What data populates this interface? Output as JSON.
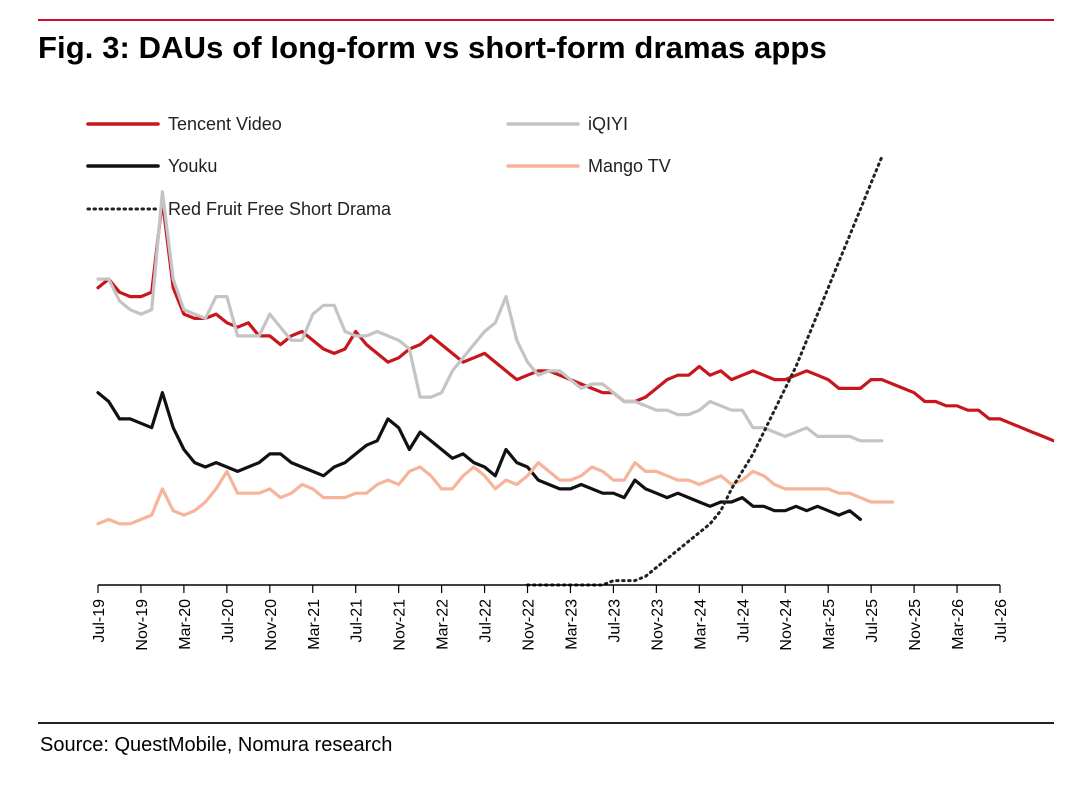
{
  "figure": {
    "title": "Fig. 3: DAUs of long-form vs short-form dramas apps",
    "source": "Source: QuestMobile, Nomura research"
  },
  "colors": {
    "tencent": "#c8161d",
    "iqiyi": "#c4c4c4",
    "youku": "#111111",
    "mango": "#f6b49a",
    "redfruit": "#222222",
    "accent_rule": "#c8102e"
  },
  "chart_data": {
    "type": "line",
    "title": "",
    "xlabel": "",
    "ylabel": "",
    "y_axis_shown": false,
    "x_ticks": [
      "Jul-19",
      "Nov-19",
      "Mar-20",
      "Jul-20",
      "Nov-20",
      "Mar-21",
      "Jul-21",
      "Nov-21",
      "Mar-22",
      "Jul-22",
      "Nov-22",
      "Mar-23",
      "Jul-23",
      "Nov-23",
      "Mar-24",
      "Jul-24",
      "Nov-24",
      "Mar-25",
      "Jul-25",
      "Nov-25",
      "Mar-26",
      "Jul-26"
    ],
    "legend_position": "top-left",
    "ylim": [
      0,
      100
    ],
    "series": [
      {
        "name": "Tencent Video",
        "key": "tencent",
        "style": "solid",
        "start_index": 0,
        "values": [
          68,
          70,
          67,
          66,
          66,
          67,
          88,
          68,
          62,
          61,
          61,
          62,
          60,
          59,
          60,
          57,
          57,
          55,
          57,
          58,
          56,
          54,
          53,
          54,
          58,
          55,
          53,
          51,
          52,
          54,
          55,
          57,
          55,
          53,
          51,
          52,
          53,
          51,
          49,
          47,
          48,
          49,
          49,
          48,
          47,
          46,
          45,
          44,
          44,
          42,
          42,
          43,
          45,
          47,
          48,
          48,
          50,
          48,
          49,
          47,
          48,
          49,
          48,
          47,
          47,
          48,
          49,
          48,
          47,
          45,
          45,
          45,
          47,
          47,
          46,
          45,
          44,
          42,
          42,
          41,
          41,
          40,
          40,
          38,
          38,
          37,
          36,
          35,
          34,
          33
        ]
      },
      {
        "name": "iQIYI",
        "key": "iqiyi",
        "style": "solid",
        "start_index": 0,
        "values": [
          70,
          70,
          65,
          63,
          62,
          63,
          90,
          70,
          63,
          62,
          61,
          66,
          66,
          57,
          57,
          57,
          62,
          59,
          56,
          56,
          62,
          64,
          64,
          58,
          57,
          57,
          58,
          57,
          56,
          54,
          43,
          43,
          44,
          49,
          52,
          55,
          58,
          60,
          66,
          56,
          51,
          48,
          49,
          49,
          47,
          45,
          46,
          46,
          44,
          42,
          42,
          41,
          40,
          40,
          39,
          39,
          40,
          42,
          41,
          40,
          40,
          36,
          36,
          35,
          34,
          35,
          36,
          34,
          34,
          34,
          34,
          33,
          33,
          33
        ]
      },
      {
        "name": "Youku",
        "key": "youku",
        "style": "solid",
        "start_index": 0,
        "values": [
          44,
          42,
          38,
          38,
          37,
          36,
          44,
          36,
          31,
          28,
          27,
          28,
          27,
          26,
          27,
          28,
          30,
          30,
          28,
          27,
          26,
          25,
          27,
          28,
          30,
          32,
          33,
          38,
          36,
          31,
          35,
          33,
          31,
          29,
          30,
          28,
          27,
          25,
          31,
          28,
          27,
          24,
          23,
          22,
          22,
          23,
          22,
          21,
          21,
          20,
          24,
          22,
          21,
          20,
          21,
          20,
          19,
          18,
          19,
          19,
          20,
          18,
          18,
          17,
          17,
          18,
          17,
          18,
          17,
          16,
          17,
          15
        ]
      },
      {
        "name": "Mango TV",
        "key": "mango",
        "style": "solid",
        "start_index": 0,
        "values": [
          14,
          15,
          14,
          14,
          15,
          16,
          22,
          17,
          16,
          17,
          19,
          22,
          26,
          21,
          21,
          21,
          22,
          20,
          21,
          23,
          22,
          20,
          20,
          20,
          21,
          21,
          23,
          24,
          23,
          26,
          27,
          25,
          22,
          22,
          25,
          27,
          25,
          22,
          24,
          23,
          25,
          28,
          26,
          24,
          24,
          25,
          27,
          26,
          24,
          24,
          28,
          26,
          26,
          25,
          24,
          24,
          23,
          24,
          25,
          23,
          24,
          26,
          25,
          23,
          22,
          22,
          22,
          22,
          22,
          21,
          21,
          20,
          19,
          19,
          19
        ]
      },
      {
        "name": "Red Fruit Free Short Drama",
        "key": "redfruit",
        "style": "dotted",
        "start_index": 40,
        "values": [
          0,
          0,
          0,
          0,
          0,
          0,
          0,
          0,
          1,
          1,
          1,
          2,
          4,
          6,
          8,
          10,
          12,
          14,
          17,
          22,
          26,
          30,
          35,
          40,
          45,
          50,
          56,
          62,
          68,
          74,
          80,
          86,
          92,
          98
        ]
      }
    ]
  }
}
